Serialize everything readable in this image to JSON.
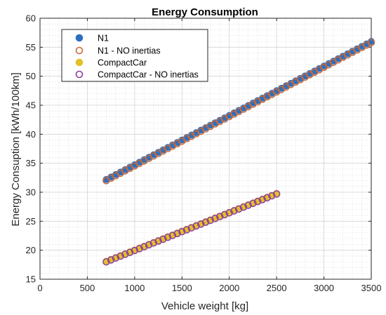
{
  "chart_data": {
    "type": "scatter",
    "title": "Energy Consumption",
    "xlabel": "Vehicle weight [kg]",
    "ylabel": "Energy Consuption [kWh/100km]",
    "xlim": [
      0,
      3500
    ],
    "ylim": [
      15,
      60
    ],
    "xticks": [
      "0",
      "500",
      "1000",
      "1500",
      "2000",
      "2500",
      "3000",
      "3500"
    ],
    "yticks": [
      "15",
      "20",
      "25",
      "30",
      "35",
      "40",
      "45",
      "50",
      "55",
      "60"
    ],
    "grid": true,
    "minor_grid": true,
    "legend_position": "top-left",
    "series": [
      {
        "name": "N1",
        "marker": "filled-circle",
        "color": "#2e6fbd",
        "x_start": 700,
        "x_end": 3500,
        "x_step": 50,
        "y_start": 32.2,
        "y_end": 56.0
      },
      {
        "name": "N1 - NO inertias",
        "marker": "open-circle",
        "color": "#c8693a",
        "x_start": 700,
        "x_end": 3500,
        "x_step": 50,
        "y_start": 32.0,
        "y_end": 55.8
      },
      {
        "name": "CompactCar",
        "marker": "filled-circle",
        "color": "#e2c02a",
        "x_start": 700,
        "x_end": 2500,
        "x_step": 50,
        "y_start": 18.1,
        "y_end": 29.8
      },
      {
        "name": "CompactCar - NO inertias",
        "marker": "open-circle",
        "color": "#8d3ea0",
        "x_start": 700,
        "x_end": 2500,
        "x_step": 50,
        "y_start": 18.0,
        "y_end": 29.7
      }
    ]
  }
}
